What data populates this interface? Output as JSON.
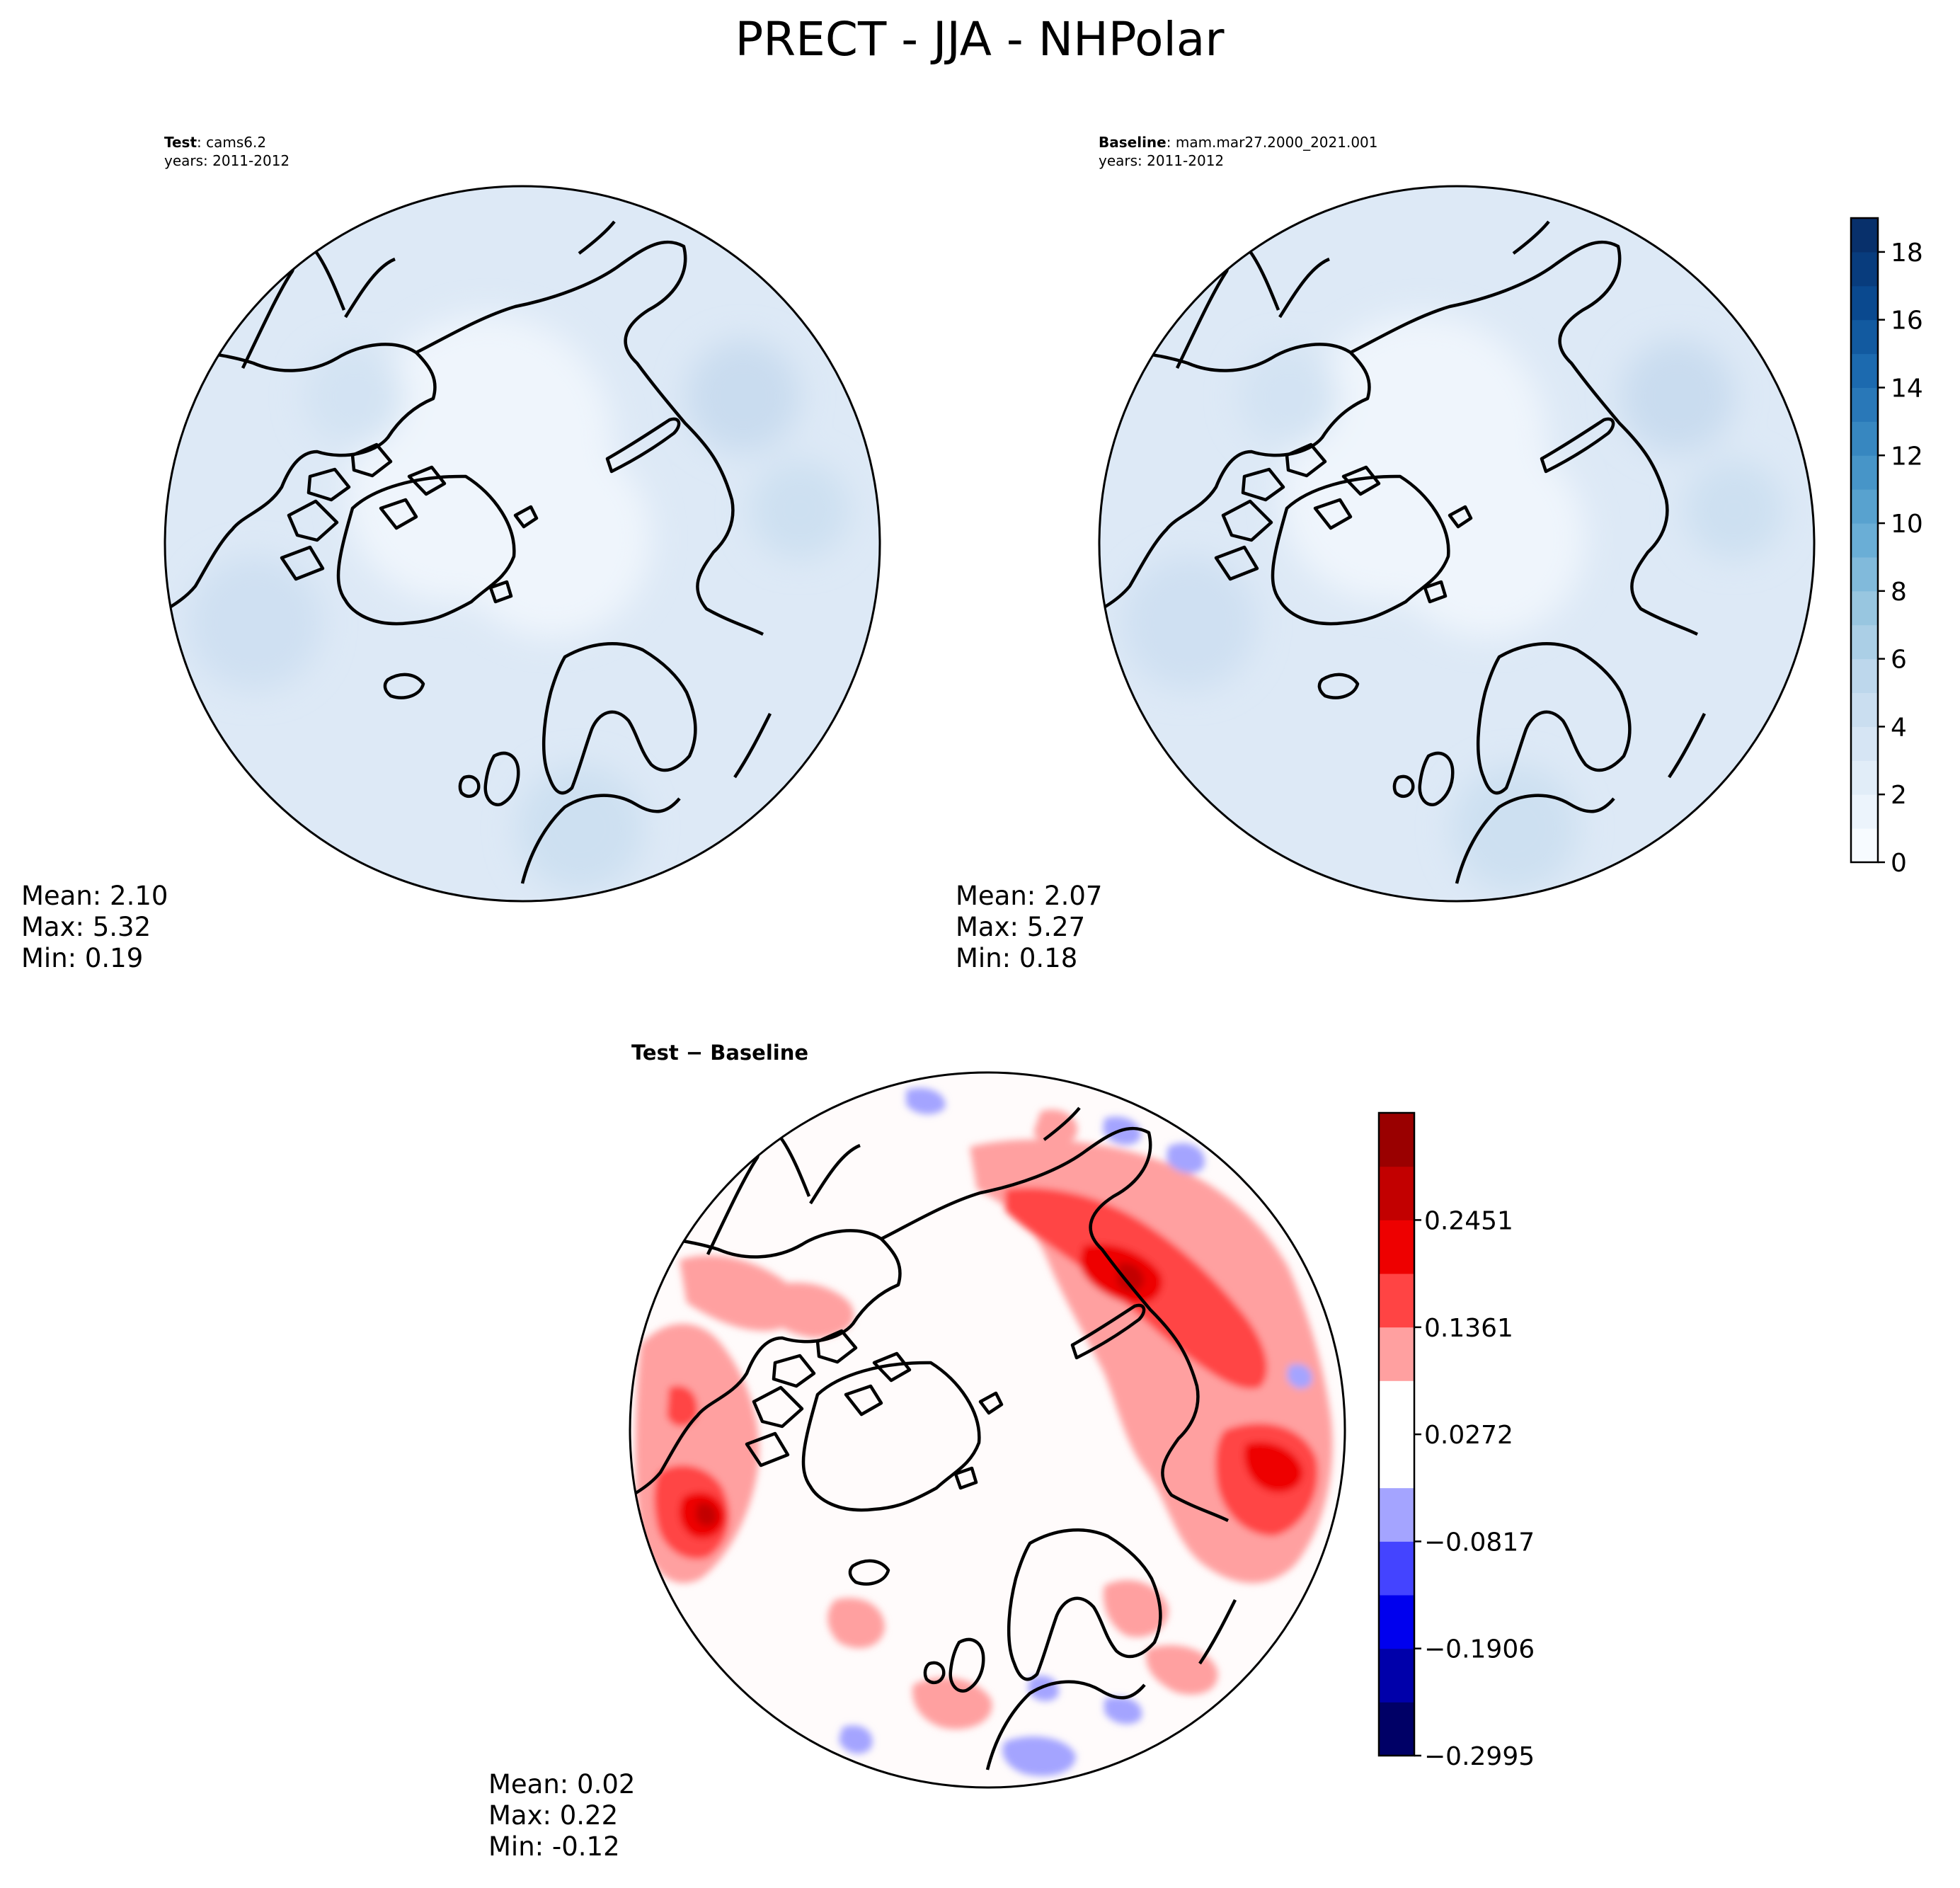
{
  "figure": {
    "title": "PRECT - JJA - NHPolar"
  },
  "chart_data": [
    {
      "type": "heatmap",
      "projection": "north-polar-stereographic",
      "label_bold": "Test",
      "label_rest": ": cams6.2",
      "years": "years: 2011-2012",
      "colormap": "Blues",
      "stats": {
        "mean": "Mean:  2.10",
        "max": "Max:  5.32",
        "min": "Min:  0.19"
      }
    },
    {
      "type": "heatmap",
      "projection": "north-polar-stereographic",
      "label_bold": "Baseline",
      "label_rest": ": mam.mar27.2000_2021.001",
      "years": "years: 2011-2012",
      "colormap": "Blues",
      "stats": {
        "mean": "Mean:  2.07",
        "max": "Max:  5.27",
        "min": "Min:  0.18"
      },
      "colorbar": {
        "range": [
          0,
          19
        ],
        "levels": [
          0,
          1,
          2,
          3,
          4,
          5,
          6,
          7,
          8,
          9,
          10,
          11,
          12,
          13,
          14,
          15,
          16,
          17,
          18,
          19
        ],
        "tick_values": [
          0,
          2,
          4,
          6,
          8,
          10,
          12,
          14,
          16,
          18
        ],
        "tick_labels": [
          "0",
          "2",
          "4",
          "6",
          "8",
          "10",
          "12",
          "14",
          "16",
          "18"
        ]
      }
    },
    {
      "type": "heatmap",
      "projection": "north-polar-stereographic",
      "label": "Test − Baseline",
      "colormap": "seismic",
      "stats": {
        "mean": "Mean:  0.02",
        "max": "Max:  0.22",
        "min": "Min: -0.12"
      },
      "colorbar": {
        "range": [
          -0.2995,
          0.3541
        ],
        "tick_values": [
          -0.2995,
          -0.1906,
          -0.0817,
          0.0272,
          0.1361,
          0.2451
        ],
        "tick_labels": [
          "−0.2995",
          "−0.1906",
          "−0.0817",
          "0.0272",
          "0.1361",
          "0.2451"
        ],
        "band_colors": [
          "#000066",
          "#0000aa",
          "#0000ee",
          "#4444ff",
          "#a4a4ff",
          "#ffffff",
          "#ffffff",
          "#ffa0a0",
          "#ff4444",
          "#ee0000",
          "#c20000",
          "#9a0000"
        ]
      }
    }
  ],
  "colors": {
    "blues": [
      "#f7fbff",
      "#e3eef9",
      "#d0e1f2",
      "#b7d4ea",
      "#94c4df",
      "#6aaed6",
      "#4a98c9",
      "#2e7ebc",
      "#1764ab",
      "#08468b",
      "#08306b"
    ],
    "diff_pos": [
      "#ffa0a0",
      "#ff4444",
      "#ee0000",
      "#c20000",
      "#9a0000"
    ],
    "diff_neg": [
      "#a4a4ff",
      "#4444ff"
    ]
  }
}
